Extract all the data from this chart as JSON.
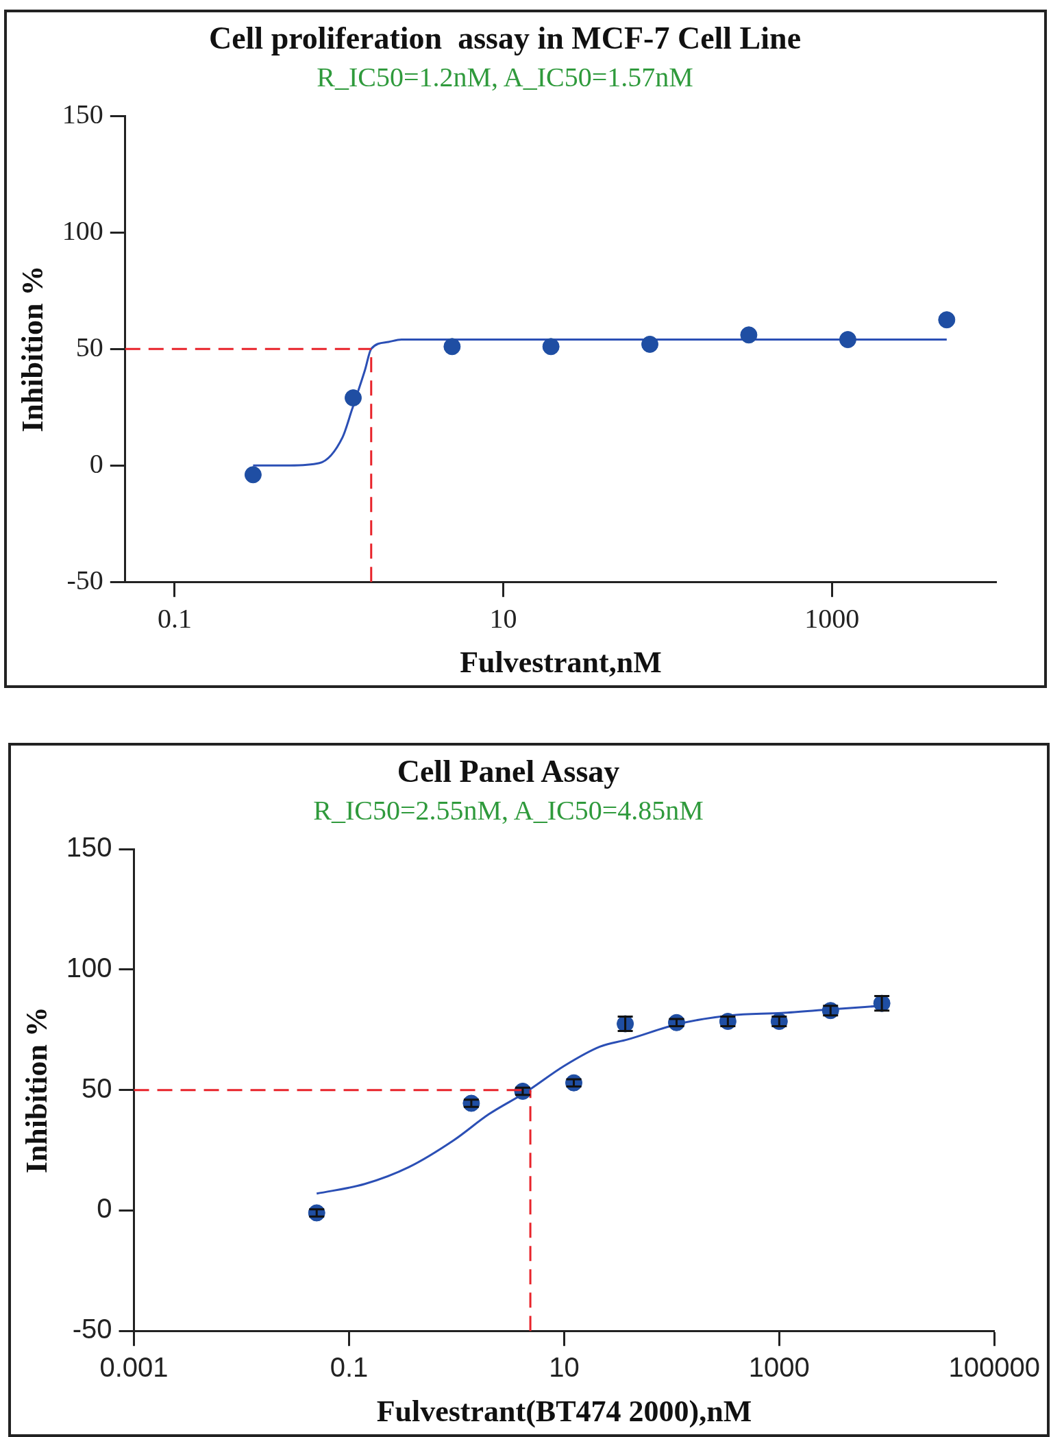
{
  "chart_data": [
    {
      "type": "scatter",
      "title": "Cell proliferation  assay in MCF-7 Cell Line",
      "subtitle": "R_IC50=1.2nM, A_IC50=1.57nM",
      "xlabel": "Fulvestrant,nM",
      "ylabel": "Inhibition %",
      "log": "x",
      "xlim": [
        0.05,
        10000
      ],
      "xticks": [
        0.1,
        10,
        1000
      ],
      "ylim": [
        -50,
        150
      ],
      "yticks": [
        -50,
        0,
        50,
        100,
        150
      ],
      "legend": false,
      "grid": false,
      "marker": "circle",
      "series": [
        {
          "type": "scatter",
          "color": "#1f4ea3",
          "x": [
            0.3,
            1.22,
            4.88,
            19.5,
            78,
            312,
            1250,
            5000
          ],
          "values": [
            -4,
            29,
            51,
            51,
            52,
            56,
            54,
            62.5
          ]
        },
        {
          "type": "line",
          "color": "#2b4fb5",
          "marker": "none",
          "line_style": "solid",
          "x": [
            0.3,
            0.5,
            0.76,
            1.05,
            1.2,
            1.44,
            1.57,
            2.0,
            2.4,
            5,
            20,
            100,
            1000,
            5000
          ],
          "values": [
            0,
            0,
            1,
            12,
            24,
            41,
            50,
            53,
            54,
            54,
            54,
            54,
            54,
            54
          ]
        }
      ],
      "ref_lines": [
        {
          "axis": "y",
          "value": 50,
          "color": "#e8232a",
          "line_style": "dashed"
        },
        {
          "axis": "x",
          "value": 1.57,
          "color": "#e8232a",
          "line_style": "dashed"
        }
      ]
    },
    {
      "type": "scatter",
      "title": "Cell Panel Assay",
      "subtitle": "R_IC50=2.55nM, A_IC50=4.85nM",
      "xlabel": "Fulvestrant(BT474 2000),nM",
      "ylabel": "Inhibition %",
      "log": "x",
      "xlim": [
        0.001,
        100000
      ],
      "xticks": [
        0.001,
        0.1,
        10,
        1000,
        100000
      ],
      "ylim": [
        -50,
        150
      ],
      "yticks": [
        -50,
        0,
        50,
        100,
        150
      ],
      "legend": false,
      "grid": false,
      "marker": "circle",
      "series": [
        {
          "type": "scatter",
          "color": "#1f4ea3",
          "x": [
            0.05,
            1.37,
            4.12,
            12.3,
            37,
            111,
            333,
            1000,
            3000,
            9000
          ],
          "values": [
            -1,
            44.5,
            49.5,
            53,
            77.5,
            78,
            78.5,
            78.5,
            83,
            86
          ],
          "errors": [
            1.5,
            1.5,
            1.5,
            1.5,
            3,
            1.5,
            2,
            2,
            2,
            3
          ]
        },
        {
          "type": "line",
          "color": "#2b4fb5",
          "marker": "none",
          "line_style": "solid",
          "x": [
            0.05,
            0.14,
            0.36,
            0.93,
            2.0,
            4.36,
            10,
            21.5,
            39,
            117,
            352,
            1050,
            3000,
            9000
          ],
          "values": [
            7,
            11,
            18,
            29,
            40,
            49,
            60,
            68,
            71,
            77.5,
            81,
            82,
            83.5,
            85
          ]
        }
      ],
      "ref_lines": [
        {
          "axis": "y",
          "value": 50,
          "color": "#e8232a",
          "line_style": "dashed"
        },
        {
          "axis": "x",
          "value": 4.85,
          "color": "#e8232a",
          "line_style": "dashed"
        }
      ]
    }
  ]
}
